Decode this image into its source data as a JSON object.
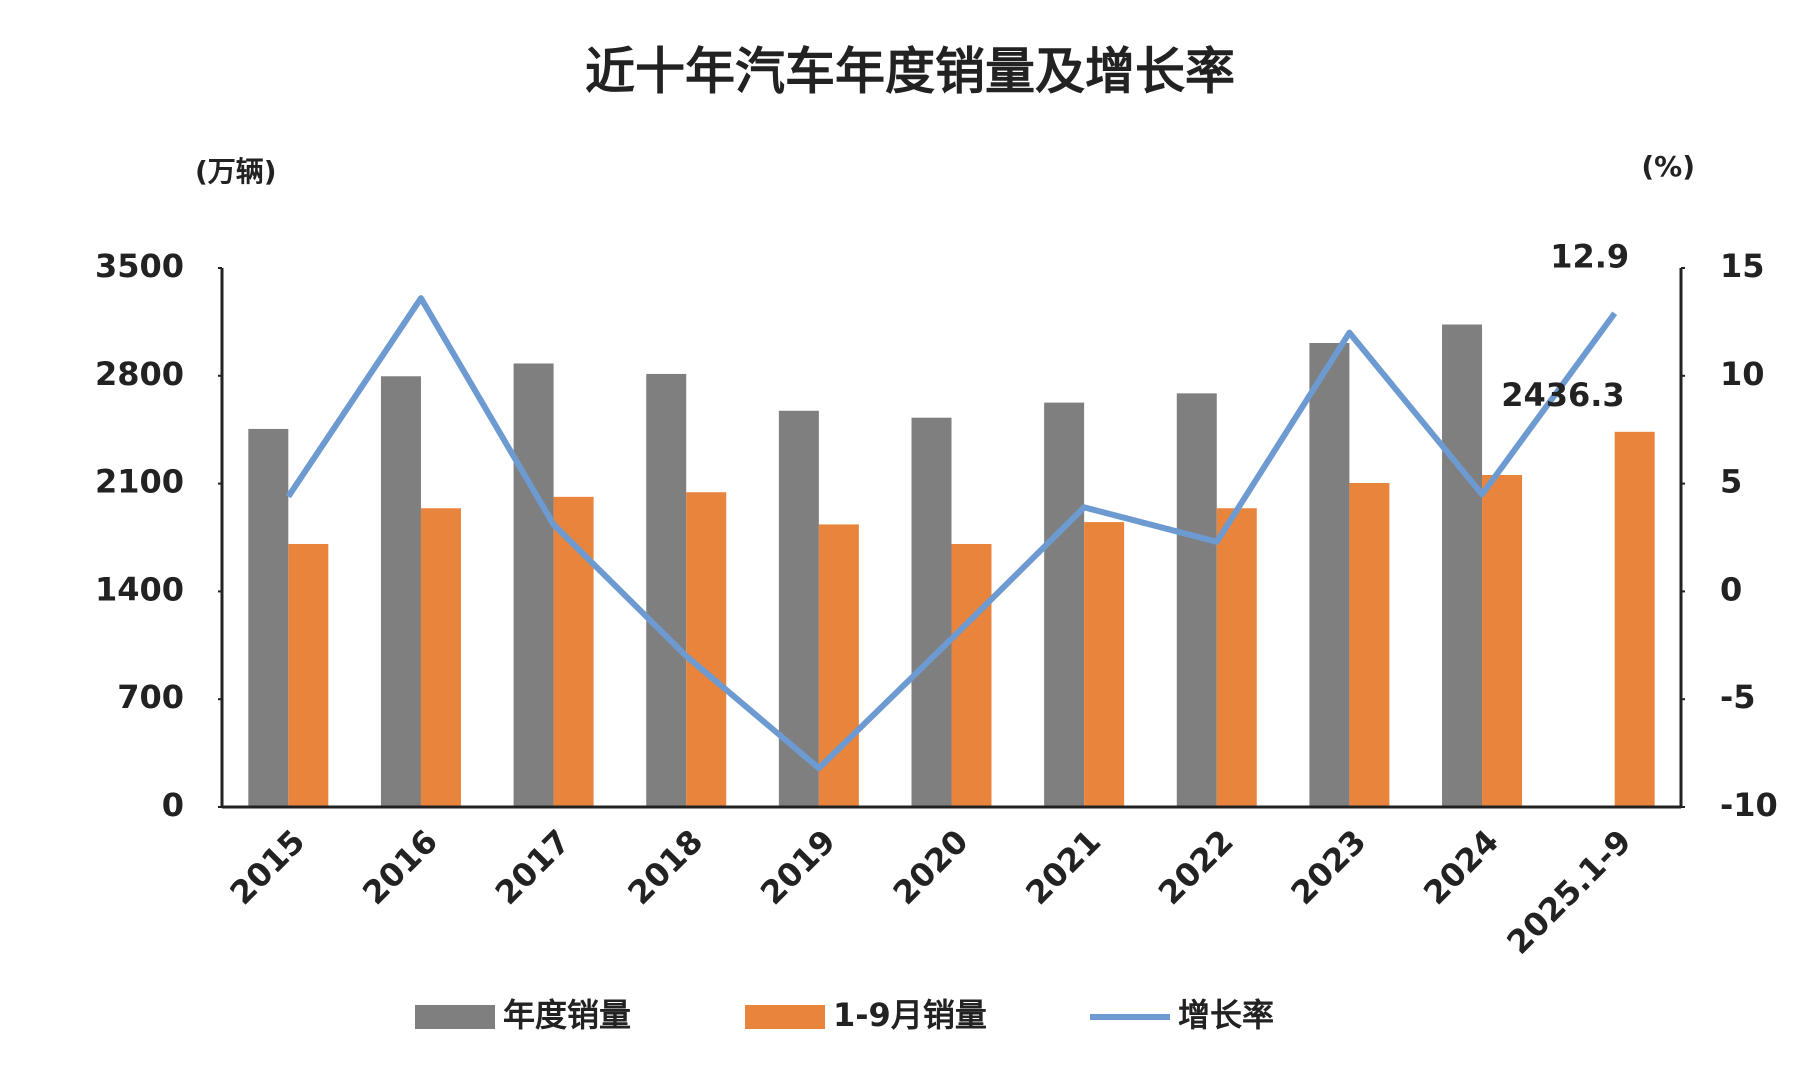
{
  "chart_data": {
    "type": "bar",
    "title": "近十年汽车年度销量及增长率",
    "y_label": "(万辆)",
    "y2_label": "(%)",
    "categories": [
      "2015",
      "2016",
      "2017",
      "2018",
      "2019",
      "2020",
      "2021",
      "2022",
      "2023",
      "2024",
      "2025.1-9"
    ],
    "series": [
      {
        "name": "年度销量",
        "color": "#7f7f7f",
        "values": [
          2455,
          2797,
          2880,
          2812,
          2573,
          2528,
          2626,
          2686,
          3013,
          3133,
          null
        ]
      },
      {
        "name": "1-9月销量",
        "color": "#e8843c",
        "values": [
          1708,
          1940,
          2014,
          2044,
          1835,
          1708,
          1850,
          1940,
          2104,
          2156,
          2436.3
        ]
      },
      {
        "name": "增长率",
        "color": "#6d9bd1",
        "type": "line",
        "axis": "y2",
        "values": [
          4.4,
          13.6,
          3.1,
          -3.0,
          -8.2,
          -2.2,
          3.9,
          2.3,
          12.0,
          4.5,
          12.9
        ]
      }
    ],
    "ylim": [
      0,
      3500
    ],
    "yticks": [
      0,
      700,
      1400,
      2100,
      2800,
      3500
    ],
    "y2lim": [
      -10,
      15
    ],
    "y2ticks": [
      -10,
      -5,
      0,
      5,
      10,
      15
    ],
    "grid": false,
    "legend": "bottom"
  }
}
